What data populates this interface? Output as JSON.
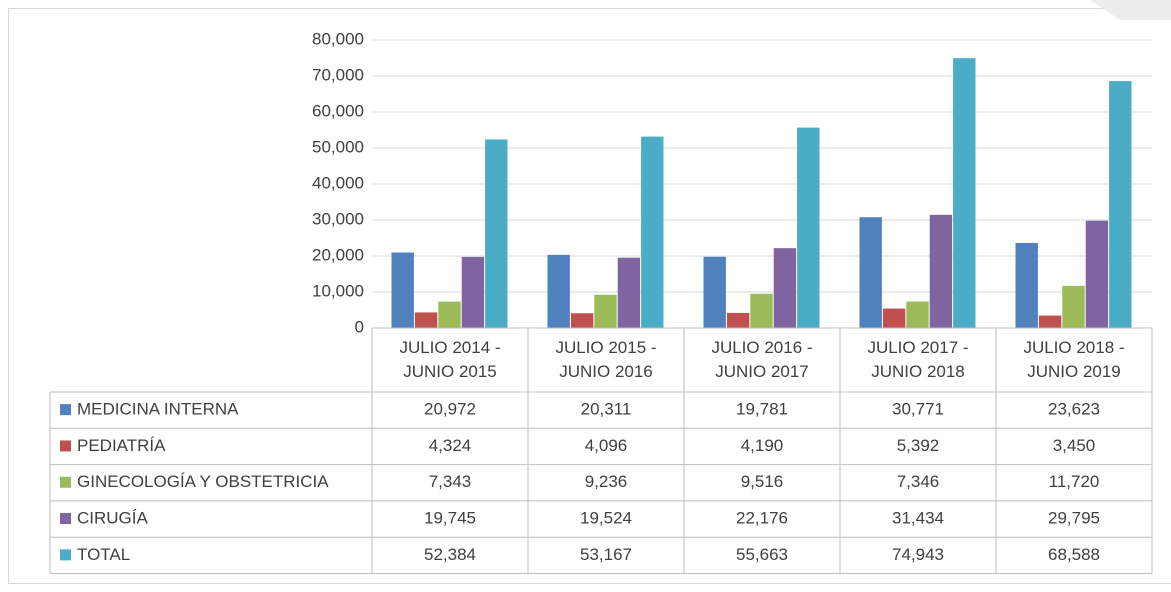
{
  "chart_data": {
    "type": "bar",
    "categories": [
      "JULIO 2014 - JUNIO 2015",
      "JULIO 2015 - JUNIO 2016",
      "JULIO 2016 - JUNIO 2017",
      "JULIO 2017 - JUNIO 2018",
      "JULIO 2018 - JUNIO 2019"
    ],
    "series": [
      {
        "name": "MEDICINA INTERNA",
        "color": "#4f81bd",
        "values": [
          20972,
          20311,
          19781,
          30771,
          23623
        ],
        "value_labels": [
          "20,972",
          "20,311",
          "19,781",
          "30,771",
          "23,623"
        ]
      },
      {
        "name": "PEDIATRÍA",
        "color": "#c0504d",
        "values": [
          4324,
          4096,
          4190,
          5392,
          3450
        ],
        "value_labels": [
          "4,324",
          "4,096",
          "4,190",
          "5,392",
          "3,450"
        ]
      },
      {
        "name": "GINECOLOGÍA Y OBSTETRICIA",
        "color": "#9bbb59",
        "values": [
          7343,
          9236,
          9516,
          7346,
          11720
        ],
        "value_labels": [
          "7,343",
          "9,236",
          "9,516",
          "7,346",
          "11,720"
        ]
      },
      {
        "name": "CIRUGÍA",
        "color": "#8064a2",
        "values": [
          19745,
          19524,
          22176,
          31434,
          29795
        ],
        "value_labels": [
          "19,745",
          "19,524",
          "22,176",
          "31,434",
          "29,795"
        ]
      },
      {
        "name": "TOTAL",
        "color": "#4bacc6",
        "values": [
          52384,
          53167,
          55663,
          74943,
          68588
        ],
        "value_labels": [
          "52,384",
          "53,167",
          "55,663",
          "74,943",
          "68,588"
        ]
      }
    ],
    "ylim": [
      0,
      80000
    ],
    "yticks": [
      0,
      {
        "value": 10000,
        "label": "10,000"
      },
      {
        "value": 20000,
        "label": "20,000"
      },
      {
        "value": 30000,
        "label": "30,000"
      },
      {
        "value": 40000,
        "label": "40,000"
      },
      {
        "value": 50000,
        "label": "50,000"
      },
      {
        "value": 60000,
        "label": "60,000"
      },
      {
        "value": 70000,
        "label": "70,000"
      },
      {
        "value": 80000,
        "label": "80,000"
      }
    ],
    "grid": true
  }
}
